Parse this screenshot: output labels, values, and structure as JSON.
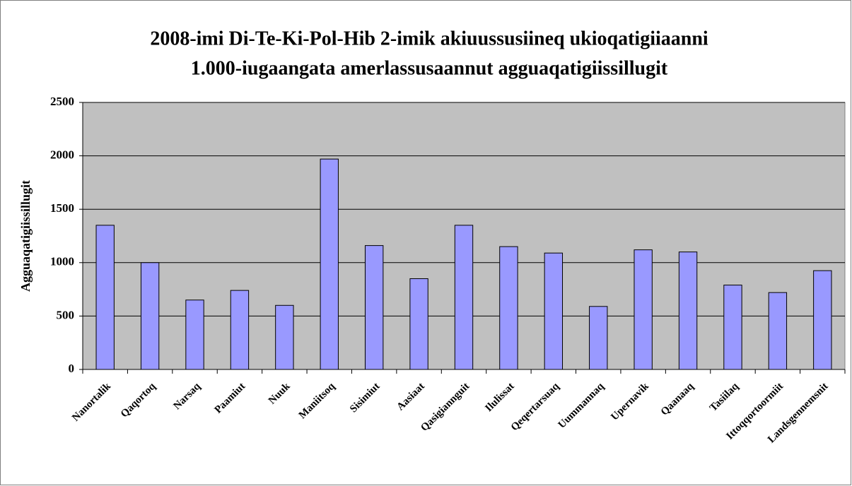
{
  "chart_data": {
    "type": "bar",
    "title": [
      "2008-imi Di-Te-Ki-Pol-Hib 2-imik akiuussusiineq ukioqatigiiaanni",
      "1.000-iugaangata amerlassusaannut agguaqatigiissillugit"
    ],
    "y_label": "Agguaqatigiissillugit",
    "categories": [
      "Nanortalik",
      "Qaqortoq",
      "Narsaq",
      "Paamiut",
      "Nuuk",
      "Maniitsoq",
      "Sisimiut",
      "Aasiaat",
      "Qasigiannguit",
      "Ilulissat",
      "Qeqertarsuaq",
      "Uummannaq",
      "Upernavik",
      "Qaanaaq",
      "Tasiilaq",
      "Ittoqqortoormiit",
      "Landsgennemsnit"
    ],
    "values": [
      1350,
      1000,
      650,
      740,
      600,
      1970,
      1160,
      850,
      1350,
      1150,
      1090,
      590,
      1120,
      1100,
      790,
      720,
      925
    ],
    "color": "#9999ff",
    "ylim": [
      0,
      2500
    ],
    "yticks": [
      0,
      500,
      1000,
      1500,
      2000,
      2500
    ],
    "grid": true
  }
}
